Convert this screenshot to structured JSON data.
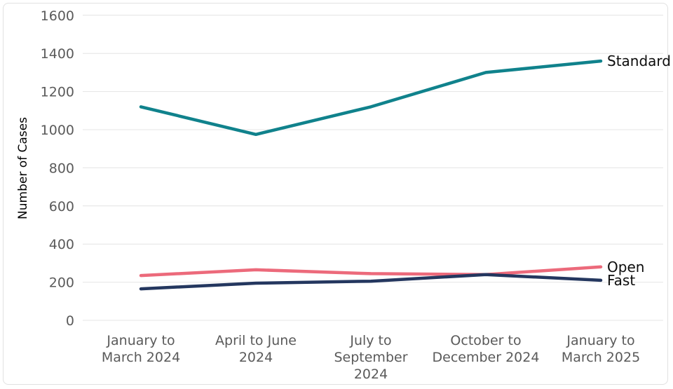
{
  "chart_data": {
    "type": "line",
    "title": "",
    "xlabel": "",
    "ylabel": "Number of Cases",
    "ylim": [
      0,
      1600
    ],
    "ytick_interval": 200,
    "yticks": [
      0,
      200,
      400,
      600,
      800,
      1000,
      1200,
      1400,
      1600
    ],
    "grid": true,
    "legend_position": "line-end-labels-right",
    "categories": [
      "January to March 2024",
      "April to June 2024",
      "July to September 2024",
      "October to December 2024",
      "January to March 2025"
    ],
    "category_label_lines": [
      [
        "January to",
        "March 2024"
      ],
      [
        "April to June",
        "2024"
      ],
      [
        "July to",
        "September",
        "2024"
      ],
      [
        "October to",
        "December 2024"
      ],
      [
        "January to",
        "March 2025"
      ]
    ],
    "series": [
      {
        "name": "Standard",
        "color": "#10828C",
        "values": [
          1120,
          975,
          1120,
          1300,
          1360
        ]
      },
      {
        "name": "Open",
        "color": "#EC6A7B",
        "values": [
          235,
          265,
          245,
          240,
          280
        ]
      },
      {
        "name": "Fast",
        "color": "#24375F",
        "values": [
          165,
          195,
          205,
          240,
          210
        ]
      }
    ]
  },
  "colors": {
    "background": "#FFFFFF",
    "card_border": "#E1E1E1",
    "gridline": "#E4E4E4",
    "axis_text": "#5A5A5A",
    "series_label_text": "#0D0D0D"
  }
}
